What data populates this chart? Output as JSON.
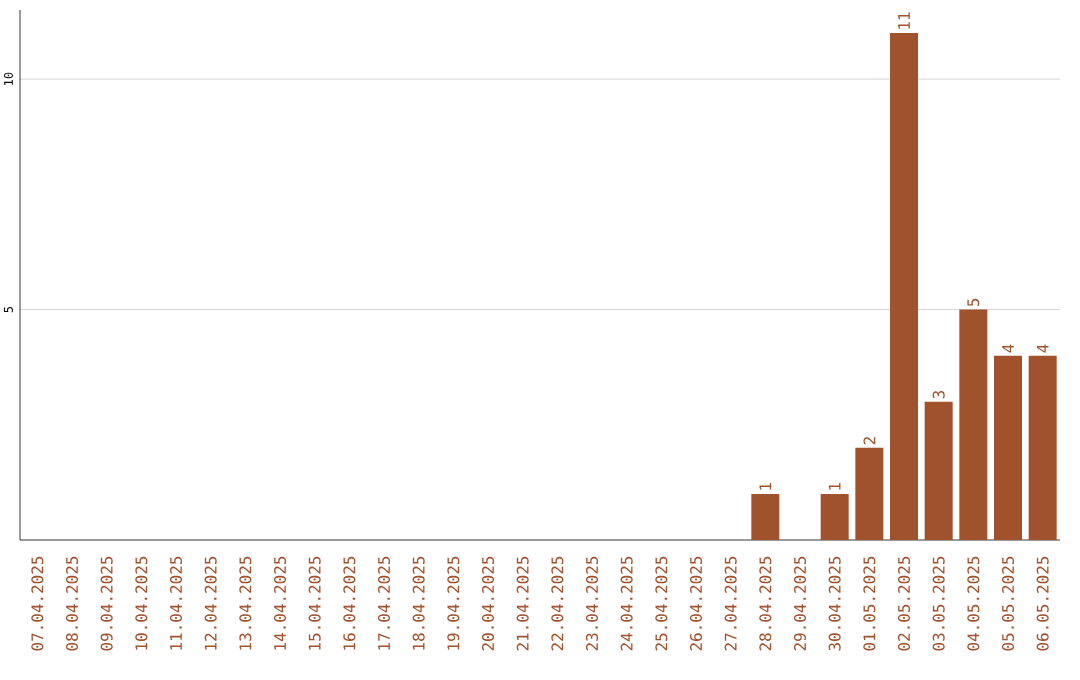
{
  "chart_data": {
    "type": "bar",
    "categories": [
      "07.04.2025",
      "08.04.2025",
      "09.04.2025",
      "10.04.2025",
      "11.04.2025",
      "12.04.2025",
      "13.04.2025",
      "14.04.2025",
      "15.04.2025",
      "16.04.2025",
      "17.04.2025",
      "18.04.2025",
      "19.04.2025",
      "20.04.2025",
      "21.04.2025",
      "22.04.2025",
      "23.04.2025",
      "24.04.2025",
      "25.04.2025",
      "26.04.2025",
      "27.04.2025",
      "28.04.2025",
      "29.04.2025",
      "30.04.2025",
      "01.05.2025",
      "02.05.2025",
      "03.05.2025",
      "04.05.2025",
      "05.05.2025",
      "06.05.2025"
    ],
    "values": [
      0,
      0,
      0,
      0,
      0,
      0,
      0,
      0,
      0,
      0,
      0,
      0,
      0,
      0,
      0,
      0,
      0,
      0,
      0,
      0,
      0,
      1,
      0,
      1,
      2,
      11,
      3,
      5,
      4,
      4
    ],
    "value_labels": [
      null,
      null,
      null,
      null,
      null,
      null,
      null,
      null,
      null,
      null,
      null,
      null,
      null,
      null,
      null,
      null,
      null,
      null,
      null,
      null,
      null,
      "1",
      null,
      "1",
      "2",
      "11",
      "3",
      "5",
      "4",
      "4"
    ],
    "color": "#a0522d",
    "ylim": [
      0,
      11.5
    ],
    "yticks": [
      5,
      10
    ],
    "grid": "y"
  }
}
